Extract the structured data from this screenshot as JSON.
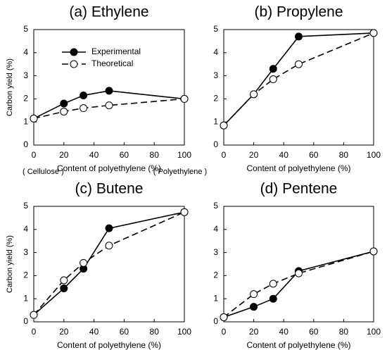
{
  "chart_data": [
    {
      "type": "line",
      "title": "(a) Ethylene",
      "xlabel": "Content of polyethylene (%)",
      "ylabel": "Carbon yield (%)",
      "x": [
        0,
        20,
        33,
        50,
        100
      ],
      "series": [
        {
          "name": "Experimental",
          "color": "#000000",
          "marker": "filled",
          "dashed": false,
          "values": [
            1.15,
            1.8,
            2.15,
            2.35,
            2.0
          ]
        },
        {
          "name": "Theoretical",
          "color": "#000000",
          "marker": "open",
          "dashed": true,
          "values": [
            1.15,
            1.45,
            1.6,
            1.72,
            2.0
          ]
        }
      ],
      "xlim": [
        0,
        100
      ],
      "ylim": [
        0,
        5
      ],
      "xticks": [
        0,
        20,
        40,
        60,
        80,
        100
      ],
      "yticks": [
        0,
        1,
        2,
        3,
        4,
        5
      ],
      "legend": "upper left",
      "annotations": [
        "( Cellulose )",
        "( Polyethylene )"
      ]
    },
    {
      "type": "line",
      "title": "(b) Propylene",
      "xlabel": "Content of polyethylene (%)",
      "x": [
        0,
        20,
        33,
        50,
        100
      ],
      "series": [
        {
          "color": "#000000",
          "marker": "filled",
          "dashed": false,
          "values": [
            0.85,
            2.2,
            3.3,
            4.7,
            4.85
          ]
        },
        {
          "color": "#000000",
          "marker": "open",
          "dashed": true,
          "values": [
            0.85,
            2.2,
            2.85,
            3.5,
            4.85
          ]
        }
      ],
      "xlim": [
        0,
        100
      ],
      "ylim": [
        0,
        5
      ],
      "xticks": [
        0,
        20,
        40,
        60,
        80,
        100
      ],
      "yticks": [
        0,
        1,
        2,
        3,
        4,
        5
      ]
    },
    {
      "type": "line",
      "title": "(c) Butene",
      "xlabel": "Content of polyethylene (%)",
      "ylabel": "Carbon yield (%)",
      "x": [
        0,
        20,
        33,
        50,
        100
      ],
      "series": [
        {
          "color": "#000000",
          "marker": "filled",
          "dashed": false,
          "values": [
            0.3,
            1.45,
            2.3,
            4.05,
            4.75
          ]
        },
        {
          "color": "#000000",
          "marker": "open",
          "dashed": true,
          "values": [
            0.3,
            1.8,
            2.55,
            3.3,
            4.75
          ]
        }
      ],
      "xlim": [
        0,
        100
      ],
      "ylim": [
        0,
        5
      ],
      "xticks": [
        0,
        20,
        40,
        60,
        80,
        100
      ],
      "yticks": [
        0,
        1,
        2,
        3,
        4,
        5
      ]
    },
    {
      "type": "line",
      "title": "(d) Pentene",
      "xlabel": "Content of polyethylene (%)",
      "x": [
        0,
        20,
        33,
        50,
        100
      ],
      "series": [
        {
          "color": "#000000",
          "marker": "filled",
          "dashed": false,
          "values": [
            0.2,
            0.65,
            1.0,
            2.2,
            3.05
          ]
        },
        {
          "color": "#000000",
          "marker": "open",
          "dashed": true,
          "values": [
            0.2,
            1.2,
            1.65,
            2.1,
            3.05
          ]
        }
      ],
      "xlim": [
        0,
        100
      ],
      "ylim": [
        0,
        5
      ],
      "xticks": [
        0,
        20,
        40,
        60,
        80,
        100
      ],
      "yticks": [
        0,
        1,
        2,
        3,
        4,
        5
      ]
    }
  ]
}
